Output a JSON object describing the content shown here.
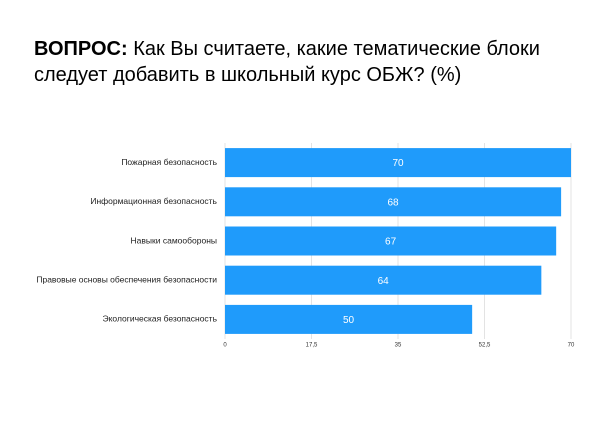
{
  "chart_data": {
    "type": "bar",
    "orientation": "horizontal",
    "title_lead": "ВОПРОС:",
    "title": "Как Вы считаете, какие тематические блоки следует добавить в школьный курс ОБЖ? (%)",
    "categories": [
      "Пожарная безопасность",
      "Информационная безопасность",
      "Навыки самообороны",
      "Правовые основы обеспечения безопасности",
      "Экологическая безопасность"
    ],
    "values": [
      70,
      68,
      67,
      64,
      50
    ],
    "color": "#1f9bfb",
    "xlim": [
      0,
      70
    ],
    "xticks": [
      0,
      {
        "value": 17.5,
        "label": "17,5"
      },
      35,
      {
        "value": 52.5,
        "label": "52,5"
      },
      70
    ],
    "grid": true
  }
}
